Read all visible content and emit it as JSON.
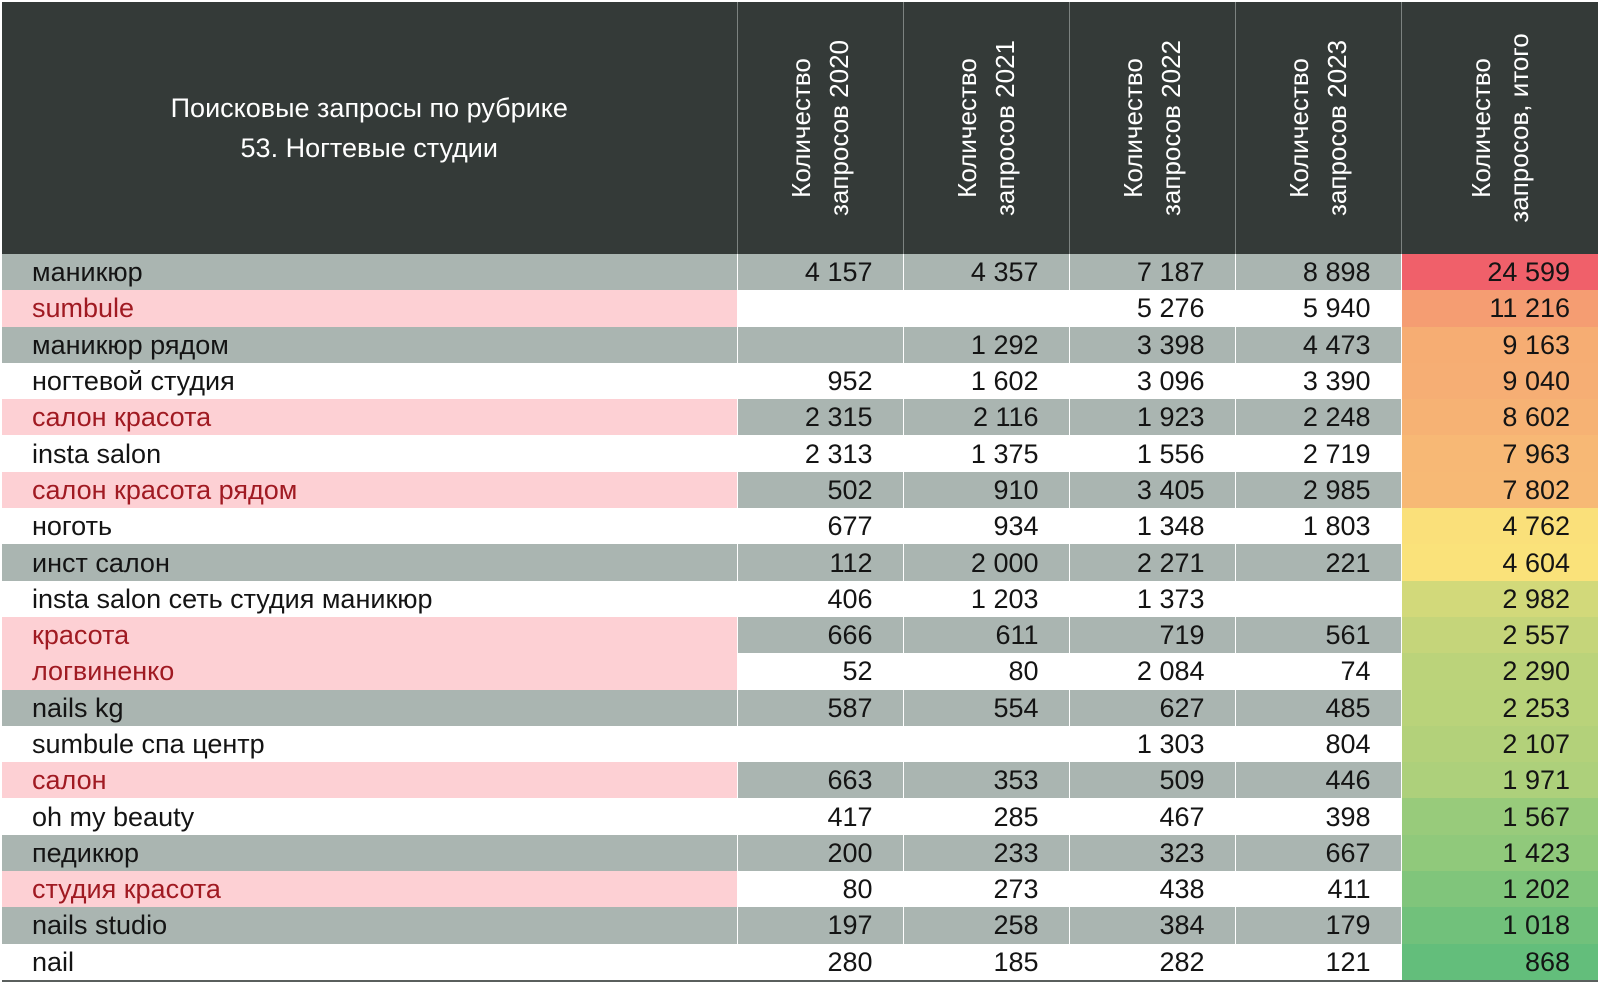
{
  "chart_data": {
    "type": "table",
    "title": [
      "Поисковые запросы по рубрике",
      "53. Ногтевые студии"
    ],
    "columns": [
      "Количество запросов 2020",
      "Количество запросов 2021",
      "Количество запросов 2022",
      "Количество запросов 2023",
      "Количество запросов, итого"
    ],
    "column_lines": [
      [
        "Количество",
        "запросов 2020"
      ],
      [
        "Количество",
        "запросов 2021"
      ],
      [
        "Количество",
        "запросов 2022"
      ],
      [
        "Количество",
        "запросов 2023"
      ],
      [
        "Количество",
        "запросов, итого"
      ]
    ],
    "rows": [
      {
        "name": "маникюр",
        "highlight": false,
        "values": [
          "4 157",
          "4 357",
          "7 187",
          "8 898"
        ],
        "total": "24 599",
        "total_value": 24599
      },
      {
        "name": "sumbule",
        "highlight": true,
        "values": [
          "",
          "",
          "5 276",
          "5 940"
        ],
        "total": "11 216",
        "total_value": 11216
      },
      {
        "name": "маникюр рядом",
        "highlight": false,
        "values": [
          "",
          "1 292",
          "3 398",
          "4 473"
        ],
        "total": "9 163",
        "total_value": 9163
      },
      {
        "name": "ногтевой студия",
        "highlight": false,
        "values": [
          "952",
          "1 602",
          "3 096",
          "3 390"
        ],
        "total": "9 040",
        "total_value": 9040
      },
      {
        "name": "салон красота",
        "highlight": true,
        "values": [
          "2 315",
          "2 116",
          "1 923",
          "2 248"
        ],
        "total": "8 602",
        "total_value": 8602
      },
      {
        "name": "insta salon",
        "highlight": false,
        "values": [
          "2 313",
          "1 375",
          "1 556",
          "2 719"
        ],
        "total": "7 963",
        "total_value": 7963
      },
      {
        "name": "салон красота рядом",
        "highlight": true,
        "values": [
          "502",
          "910",
          "3 405",
          "2 985"
        ],
        "total": "7 802",
        "total_value": 7802
      },
      {
        "name": "ноготь",
        "highlight": false,
        "values": [
          "677",
          "934",
          "1 348",
          "1 803"
        ],
        "total": "4 762",
        "total_value": 4762
      },
      {
        "name": "инст салон",
        "highlight": false,
        "values": [
          "112",
          "2 000",
          "2 271",
          "221"
        ],
        "total": "4 604",
        "total_value": 4604
      },
      {
        "name": "insta salon сеть студия маникюр",
        "highlight": false,
        "values": [
          "406",
          "1 203",
          "1 373",
          ""
        ],
        "total": "2 982",
        "total_value": 2982
      },
      {
        "name": "красота",
        "highlight": true,
        "values": [
          "666",
          "611",
          "719",
          "561"
        ],
        "total": "2 557",
        "total_value": 2557
      },
      {
        "name": "логвиненко",
        "highlight": true,
        "values": [
          "52",
          "80",
          "2 084",
          "74"
        ],
        "total": "2 290",
        "total_value": 2290
      },
      {
        "name": "nails kg",
        "highlight": false,
        "values": [
          "587",
          "554",
          "627",
          "485"
        ],
        "total": "2 253",
        "total_value": 2253
      },
      {
        "name": "sumbule спа центр",
        "highlight": false,
        "values": [
          "",
          "",
          "1 303",
          "804"
        ],
        "total": "2 107",
        "total_value": 2107
      },
      {
        "name": "салон",
        "highlight": true,
        "values": [
          "663",
          "353",
          "509",
          "446"
        ],
        "total": "1 971",
        "total_value": 1971
      },
      {
        "name": "oh my beauty",
        "highlight": false,
        "values": [
          "417",
          "285",
          "467",
          "398"
        ],
        "total": "1 567",
        "total_value": 1567
      },
      {
        "name": "педикюр",
        "highlight": false,
        "values": [
          "200",
          "233",
          "323",
          "667"
        ],
        "total": "1 423",
        "total_value": 1423
      },
      {
        "name": "студия красота",
        "highlight": true,
        "values": [
          "80",
          "273",
          "438",
          "411"
        ],
        "total": "1 202",
        "total_value": 1202
      },
      {
        "name": "nails studio",
        "highlight": false,
        "values": [
          "197",
          "258",
          "384",
          "179"
        ],
        "total": "1 018",
        "total_value": 1018
      },
      {
        "name": "nail",
        "highlight": false,
        "values": [
          "280",
          "185",
          "282",
          "121"
        ],
        "total": "868",
        "total_value": 868
      }
    ]
  },
  "colors": {
    "header_bg": "#343a38",
    "header_text": "#ffffff",
    "row_gray": "#aab5b1",
    "row_white": "#ffffff",
    "highlight_bg": "#fdd0d4",
    "highlight_text": "#a01a22",
    "scale_high": "#f0606a",
    "scale_mid": "#fae27a",
    "scale_low": "#63be7b"
  }
}
